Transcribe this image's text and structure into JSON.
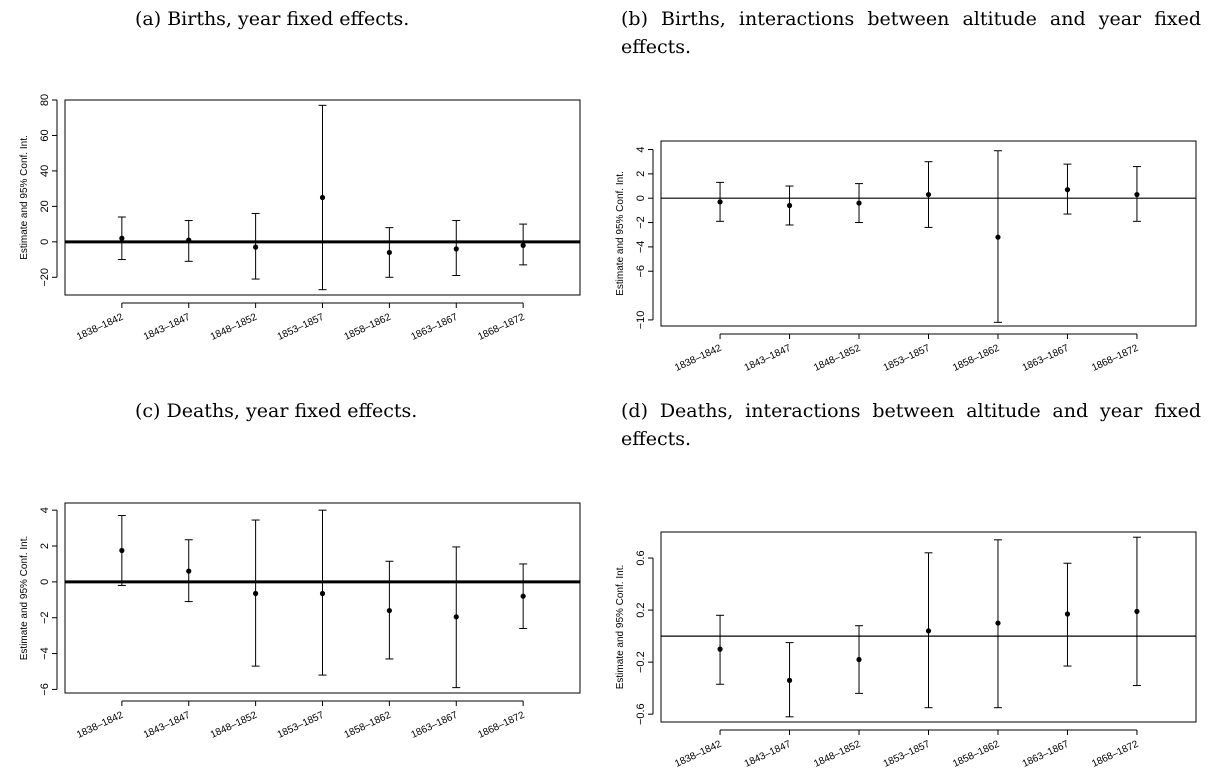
{
  "chart_data": [
    {
      "type": "scatter",
      "caption": "(a) Births, year fixed effects.",
      "ylabel": "Estimate and 95% Conf. Int.",
      "categories": [
        "1838–1842",
        "1843–1847",
        "1848–1852",
        "1853–1857",
        "1858–1862",
        "1863–1867",
        "1868–1872"
      ],
      "estimates": [
        2,
        1,
        -3,
        25,
        -6,
        -4,
        -2
      ],
      "ci_lower": [
        -10,
        -11,
        -21,
        -27,
        -20,
        -19,
        -13
      ],
      "ci_upper": [
        14,
        12,
        16,
        77,
        8,
        12,
        10
      ],
      "ylim": [
        -30,
        80
      ],
      "yticks": [
        -20,
        0,
        20,
        40,
        60,
        80
      ],
      "reference_line": 0,
      "reference_line_bold": true
    },
    {
      "type": "scatter",
      "caption": "(b) Births, interactions between altitude and year fixed effects.",
      "ylabel": "Estimate and 95% Conf. Int.",
      "categories": [
        "1838–1842",
        "1843–1847",
        "1848–1852",
        "1853–1857",
        "1858–1862",
        "1863–1867",
        "1868–1872"
      ],
      "estimates": [
        -0.3,
        -0.6,
        -0.4,
        0.3,
        -3.2,
        0.7,
        0.3
      ],
      "ci_lower": [
        -1.9,
        -2.2,
        -2.0,
        -2.4,
        -10.2,
        -1.3,
        -1.9
      ],
      "ci_upper": [
        1.3,
        1.0,
        1.2,
        3.0,
        3.9,
        2.8,
        2.6
      ],
      "ylim": [
        -10.5,
        4.7
      ],
      "yticks": [
        -10,
        -6,
        -4,
        -2,
        0,
        2,
        4
      ],
      "reference_line": 0,
      "reference_line_bold": false
    },
    {
      "type": "scatter",
      "caption": "(c) Deaths, year fixed effects.",
      "ylabel": "Estimate and 95% Conf. Int.",
      "categories": [
        "1838–1842",
        "1843–1847",
        "1848–1852",
        "1853–1857",
        "1858–1862",
        "1863–1867",
        "1868–1872"
      ],
      "estimates": [
        1.75,
        0.6,
        -0.65,
        -0.65,
        -1.6,
        -1.95,
        -0.8
      ],
      "ci_lower": [
        -0.2,
        -1.1,
        -4.7,
        -5.2,
        -4.3,
        -5.9,
        -2.6
      ],
      "ci_upper": [
        3.7,
        2.35,
        3.45,
        4.0,
        1.15,
        1.95,
        1.0
      ],
      "ylim": [
        -6.2,
        4.4
      ],
      "yticks": [
        -6,
        -4,
        -2,
        0,
        2,
        4
      ],
      "reference_line": 0,
      "reference_line_bold": true
    },
    {
      "type": "scatter",
      "caption": "(d) Deaths, interactions between altitude and year fixed effects.",
      "ylabel": "Estimate and 95% Conf. Int.",
      "categories": [
        "1838–1842",
        "1843–1847",
        "1848–1852",
        "1853–1857",
        "1858–1862",
        "1863–1867",
        "1868–1872"
      ],
      "estimates": [
        -0.1,
        -0.34,
        -0.18,
        0.04,
        0.1,
        0.17,
        0.19
      ],
      "ci_lower": [
        -0.37,
        -0.62,
        -0.44,
        -0.55,
        -0.55,
        -0.23,
        -0.38
      ],
      "ci_upper": [
        0.16,
        -0.05,
        0.08,
        0.64,
        0.74,
        0.56,
        0.76
      ],
      "ylim": [
        -0.66,
        0.8
      ],
      "yticks": [
        -0.6,
        -0.2,
        0.2,
        0.6
      ],
      "reference_line": 0,
      "reference_line_bold": false
    }
  ]
}
